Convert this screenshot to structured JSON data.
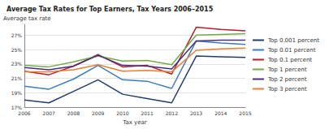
{
  "chart_data": {
    "type": "line",
    "title": "Average Tax Rates for Top Earners, Tax Years 2006–2015",
    "x_label": "Tax year",
    "y_label": "Average tax rate",
    "categories": [
      "2006",
      "2007",
      "2008",
      "2009",
      "2010",
      "2011",
      "2012",
      "2013",
      "2014",
      "2015"
    ],
    "series": [
      {
        "name": "Top 0.001 percent",
        "color": "#1f3e6e",
        "values": [
          18.0,
          17.6,
          19.2,
          20.8,
          18.8,
          18.2,
          17.6,
          24.1,
          24.0,
          23.9
        ]
      },
      {
        "name": "Top 0.01 percent",
        "color": "#3b7cc0",
        "values": [
          19.9,
          19.5,
          20.9,
          22.8,
          20.8,
          20.6,
          19.6,
          26.2,
          25.9,
          25.7
        ]
      },
      {
        "name": "Top 0.1 percent",
        "color": "#b3202a",
        "values": [
          22.0,
          21.5,
          22.7,
          24.3,
          22.6,
          22.8,
          21.6,
          28.1,
          27.8,
          27.6
        ]
      },
      {
        "name": "Top 1 percent",
        "color": "#70ad47",
        "values": [
          22.8,
          22.6,
          23.3,
          24.1,
          23.4,
          23.5,
          22.9,
          27.0,
          27.1,
          27.2
        ]
      },
      {
        "name": "Top 2 percent",
        "color": "#4b2d7f",
        "values": [
          22.5,
          22.2,
          22.7,
          24.2,
          22.8,
          22.7,
          22.3,
          26.2,
          26.3,
          26.3
        ]
      },
      {
        "name": "Top 3 percent",
        "color": "#ed7d31",
        "values": [
          21.9,
          21.9,
          22.2,
          22.9,
          22.0,
          22.1,
          21.9,
          24.9,
          25.1,
          25.2
        ]
      }
    ],
    "ylim": [
      17,
      28.5
    ],
    "yticks": [
      {
        "value": 17,
        "label": "17%"
      },
      {
        "value": 19,
        "label": "19%"
      },
      {
        "value": 21,
        "label": "21%"
      },
      {
        "value": 23,
        "label": "23%"
      },
      {
        "value": 25,
        "label": "25%"
      },
      {
        "value": 27,
        "label": "27%"
      }
    ],
    "grid": true,
    "legend": "right"
  }
}
